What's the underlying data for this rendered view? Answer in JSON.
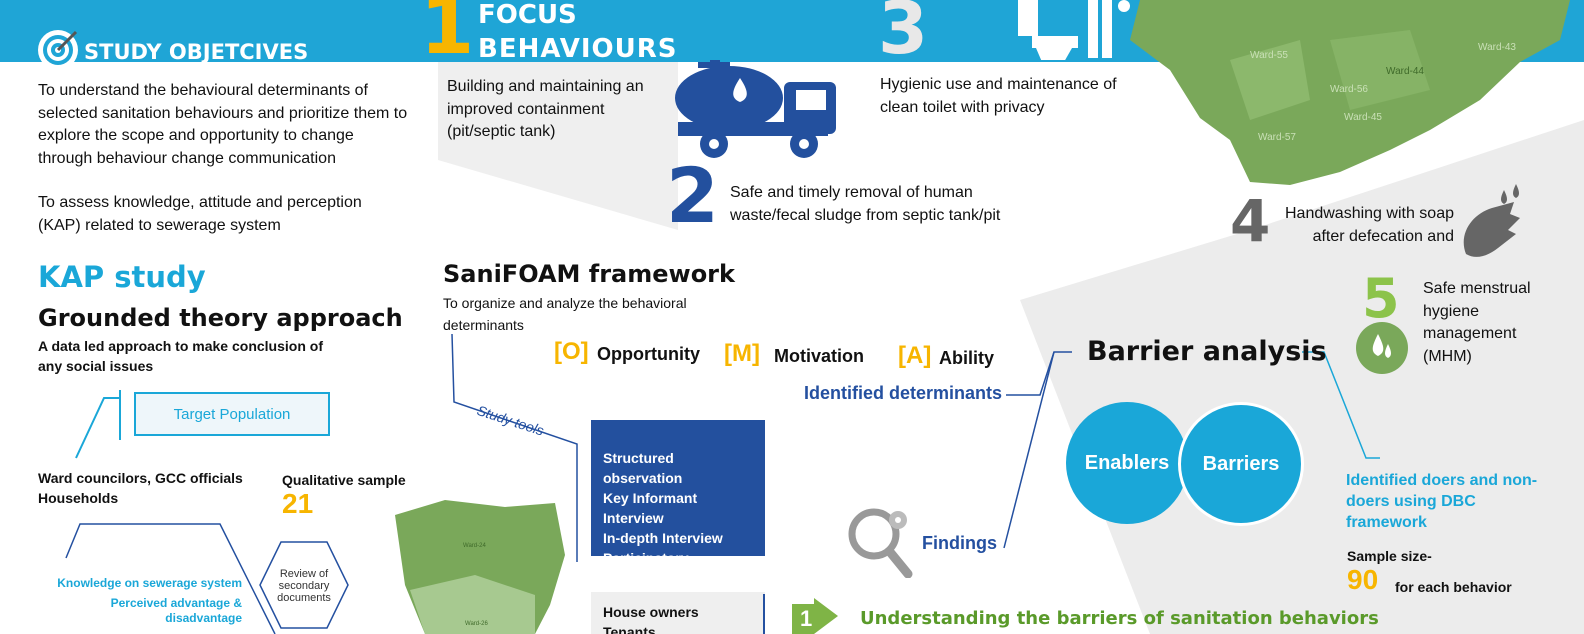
{
  "objectives": {
    "title": "STUDY OBJETCIVES",
    "paragraph1": "To understand the behavioural determinants of selected sanitation behaviours and prioritize them to explore the scope and opportunity to change through behaviour change communication",
    "paragraph2": "To assess knowledge, attitude and perception (KAP) related to sewerage system"
  },
  "kap": {
    "title": "KAP study",
    "subtitle": "Grounded theory approach",
    "description": "A data led approach to make conclusion of any social issues",
    "target_label": "Target Population",
    "population": "Ward councilors, GCC officials\nHouseholds",
    "sample_label": "Qualitative sample",
    "sample_value": "21",
    "topic1": "Knowledge on sewerage system",
    "topic2": "Perceived advantage & disadvantage",
    "review": "Review of secondary documents"
  },
  "focus": {
    "number": "1",
    "title_line1": "FOCUS",
    "title_line2": "BEHAVIOURS",
    "b1": "Building and maintaining an improved containment (pit/septic tank)",
    "b2_number": "2",
    "b2": "Safe and timely removal of human waste/fecal sludge from septic tank/pit",
    "b3_number": "3",
    "b3": "Hygienic use and maintenance of clean toilet with privacy",
    "b4_number": "4",
    "b4": "Handwashing with soap after defecation and",
    "b5_number": "5",
    "b5": "Safe menstrual hygiene management (MHM)"
  },
  "map": {
    "wards": [
      "Ward-55",
      "Ward-56",
      "Ward-57",
      "Ward-44",
      "Ward-45",
      "Ward-43"
    ],
    "small_wards": [
      "Ward-24",
      "Ward-26"
    ]
  },
  "sanifoam": {
    "title": "SaniFOAM framework",
    "description": "To organize and analyze the behavioral determinants",
    "o_key": "[O]",
    "o_label": "Opportunity",
    "m_key": "[M]",
    "m_label": "Motivation",
    "a_key": "[A]",
    "a_label": "Ability",
    "study_tools": "Study tools",
    "tools": [
      "Structured observation",
      "Key Informant Interview",
      "In-depth Interview",
      "Participatory workshop"
    ],
    "identified": "Identified determinants",
    "participant1": "House owners",
    "participant2": "Tenants"
  },
  "barrier": {
    "title": "Barrier analysis",
    "enablers": "Enablers",
    "barriers": "Barriers",
    "findings": "Findings",
    "doers": "Identified doers and non-doers using DBC framework",
    "sample_label": "Sample size-",
    "sample_value": "90",
    "sample_suffix": "for each behavior"
  },
  "understanding": {
    "number": "1",
    "text": "Understanding the barriers of sanitation behaviors"
  },
  "colors": {
    "header": "#1fa5d6",
    "accent_yellow": "#f7b500",
    "dark_blue": "#23509e",
    "green": "#7aa85a",
    "light_green": "#8cc34a"
  }
}
